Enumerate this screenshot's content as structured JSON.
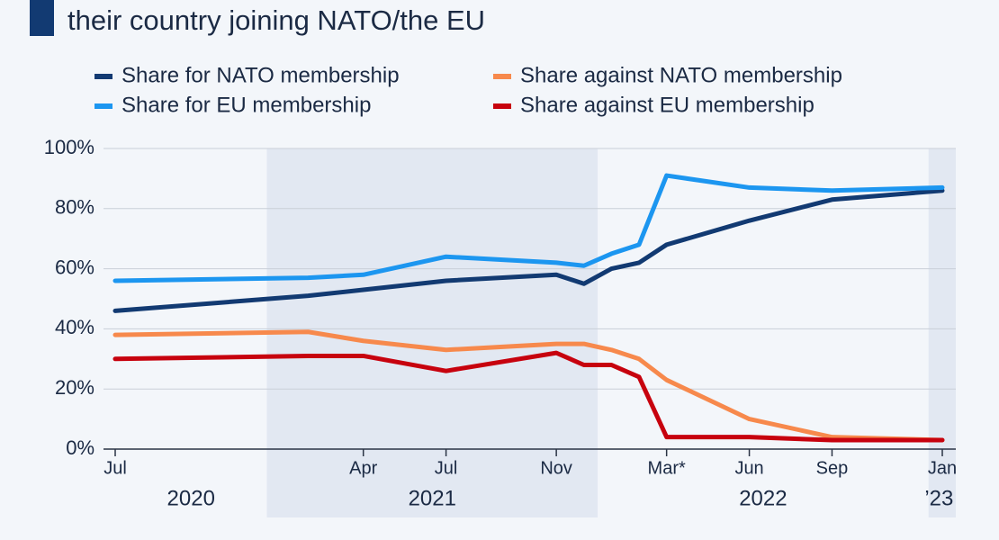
{
  "chart_data": {
    "type": "line",
    "title": "their country joining NATO/the EU",
    "x": [
      "2020-07",
      "2021-02",
      "2021-04",
      "2021-07",
      "2021-11",
      "2021-12",
      "2022-01",
      "2022-02",
      "2022-03",
      "2022-06",
      "2022-09",
      "2023-01"
    ],
    "series": [
      {
        "name": "Share for NATO membership",
        "color": "#123a72",
        "values": [
          46,
          51,
          53,
          56,
          58,
          55,
          60,
          62,
          68,
          76,
          83,
          86
        ]
      },
      {
        "name": "Share against NATO membership",
        "color": "#f7894c",
        "values": [
          38,
          39,
          36,
          33,
          35,
          35,
          33,
          30,
          23,
          10,
          4,
          3
        ]
      },
      {
        "name": "Share for EU membership",
        "color": "#1c96f0",
        "values": [
          56,
          57,
          58,
          64,
          62,
          61,
          65,
          68,
          91,
          87,
          86,
          87
        ]
      },
      {
        "name": "Share against EU membership",
        "color": "#c7020e",
        "values": [
          30,
          31,
          31,
          26,
          32,
          28,
          28,
          24,
          4,
          4,
          3,
          3
        ]
      }
    ],
    "xlim": [
      "2020-07",
      "2023-01"
    ],
    "xticks": [
      {
        "value": "2020-07",
        "label": "Jul"
      },
      {
        "value": "2021-04",
        "label": "Apr"
      },
      {
        "value": "2021-07",
        "label": "Jul"
      },
      {
        "value": "2021-11",
        "label": "Nov"
      },
      {
        "value": "2022-03",
        "label": "Mar*"
      },
      {
        "value": "2022-06",
        "label": "Jun"
      },
      {
        "value": "2022-09",
        "label": "Sep"
      },
      {
        "value": "2023-01",
        "label": "Jan"
      }
    ],
    "x_groups": [
      {
        "label": "2020",
        "start": "2020-07",
        "end": "2020-12"
      },
      {
        "label": "2021",
        "start": "2021-01",
        "end": "2021-12"
      },
      {
        "label": "2022",
        "start": "2022-01",
        "end": "2022-12"
      },
      {
        "label": "’23",
        "start": "2023-01",
        "end": "2023-01"
      }
    ],
    "ylim": [
      0,
      100
    ],
    "yticks": [
      {
        "value": 0,
        "label": "0%"
      },
      {
        "value": 20,
        "label": "20%"
      },
      {
        "value": 40,
        "label": "40%"
      },
      {
        "value": 60,
        "label": "60%"
      },
      {
        "value": 80,
        "label": "80%"
      },
      {
        "value": 100,
        "label": "100%"
      }
    ],
    "grid": true
  }
}
